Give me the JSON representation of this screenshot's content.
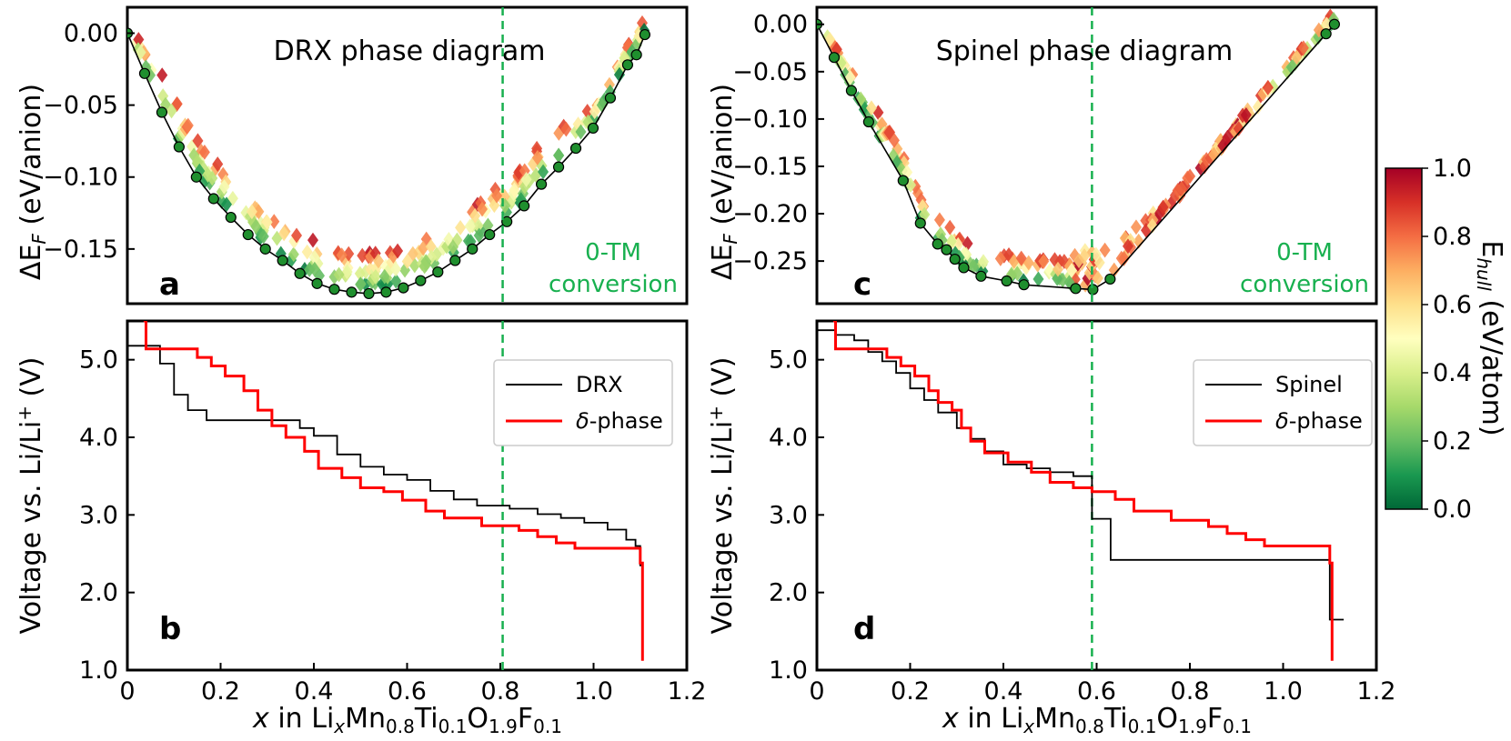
{
  "chart_data": [
    {
      "id": "a",
      "panel_label": "a",
      "type": "scatter",
      "title": "DRX phase diagram",
      "xlabel": "",
      "ylabel": "ΔE_F (eV/anion)",
      "xlim": [
        0,
        1.2
      ],
      "ylim": [
        -0.188,
        0.018
      ],
      "yticks": [
        0.0,
        -0.05,
        -0.1,
        -0.15
      ],
      "ytick_labels": [
        "0.00",
        "−0.05",
        "−0.10",
        "−0.15"
      ],
      "vline_x": 0.805,
      "annotation": [
        "0-TM",
        "conversion"
      ],
      "hull": {
        "x": [
          0,
          0.037,
          0.074,
          0.111,
          0.148,
          0.185,
          0.222,
          0.259,
          0.296,
          0.333,
          0.37,
          0.407,
          0.444,
          0.481,
          0.518,
          0.555,
          0.592,
          0.629,
          0.666,
          0.703,
          0.74,
          0.777,
          0.814,
          0.851,
          0.888,
          0.925,
          0.962,
          0.999,
          1.036,
          1.073,
          1.092,
          1.11
        ],
        "y": [
          0.0,
          -0.028,
          -0.055,
          -0.079,
          -0.1,
          -0.115,
          -0.128,
          -0.14,
          -0.15,
          -0.158,
          -0.167,
          -0.174,
          -0.178,
          -0.18,
          -0.181,
          -0.18,
          -0.177,
          -0.172,
          -0.166,
          -0.158,
          -0.15,
          -0.14,
          -0.131,
          -0.12,
          -0.105,
          -0.093,
          -0.08,
          -0.066,
          -0.045,
          -0.022,
          -0.015,
          -0.001
        ]
      },
      "scatter_top": {
        "x": [
          0.0,
          0.2,
          0.5,
          0.8,
          1.0,
          1.1
        ],
        "y": [
          0.0,
          -0.085,
          -0.155,
          -0.095,
          -0.055,
          -0.01
        ]
      },
      "scatter_spread": 0.025
    },
    {
      "id": "b",
      "panel_label": "b",
      "type": "line",
      "xlabel": "x in LixMn0.8Ti0.1O1.9F0.1",
      "ylabel": "Voltage vs. Li/Li⁺ (V)",
      "xlim": [
        0,
        1.2
      ],
      "ylim": [
        1.0,
        5.5
      ],
      "xticks": [
        0,
        0.2,
        0.4,
        0.6,
        0.8,
        1.0,
        1.2
      ],
      "xtick_labels": [
        "0",
        "0.2",
        "0.4",
        "0.6",
        "0.8",
        "1.0",
        "1.2"
      ],
      "yticks": [
        1.0,
        2.0,
        3.0,
        4.0,
        5.0
      ],
      "ytick_labels": [
        "1.0",
        "2.0",
        "3.0",
        "4.0",
        "5.0"
      ],
      "vline_x": 0.805,
      "legend": [
        "DRX",
        "δ-phase"
      ],
      "series": [
        {
          "name": "DRX",
          "color": "#000000",
          "steps": {
            "x": [
              0,
              0.05,
              0.07,
              0.1,
              0.13,
              0.17,
              0.2,
              0.27,
              0.33,
              0.37,
              0.4,
              0.45,
              0.5,
              0.55,
              0.6,
              0.65,
              0.7,
              0.75,
              0.82,
              0.88,
              0.93,
              0.98,
              1.03,
              1.07,
              1.09,
              1.1,
              1.105
            ],
            "y": [
              5.18,
              5.18,
              4.95,
              4.55,
              4.35,
              4.22,
              4.22,
              4.22,
              4.22,
              4.12,
              4.02,
              3.78,
              3.62,
              3.52,
              3.45,
              3.31,
              3.2,
              3.12,
              3.08,
              3.01,
              2.96,
              2.9,
              2.81,
              2.68,
              2.6,
              2.35,
              1.25
            ]
          }
        },
        {
          "name": "δ-phase",
          "color": "#ff0000",
          "steps": {
            "x": [
              0.035,
              0.04,
              0.12,
              0.15,
              0.18,
              0.21,
              0.25,
              0.28,
              0.31,
              0.34,
              0.38,
              0.41,
              0.46,
              0.5,
              0.55,
              0.59,
              0.64,
              0.68,
              0.76,
              0.84,
              0.88,
              0.92,
              0.96,
              1.1,
              1.105
            ],
            "y": [
              5.5,
              5.14,
              5.14,
              5.03,
              4.92,
              4.79,
              4.6,
              4.35,
              4.15,
              4.0,
              3.82,
              3.6,
              3.48,
              3.35,
              3.3,
              3.19,
              3.05,
              2.96,
              2.86,
              2.8,
              2.72,
              2.64,
              2.57,
              2.38,
              1.12
            ]
          }
        }
      ]
    },
    {
      "id": "c",
      "panel_label": "c",
      "type": "scatter",
      "title": "Spinel phase diagram",
      "xlabel": "",
      "ylabel": "ΔE_F (eV/anion)",
      "xlim": [
        0,
        1.2
      ],
      "ylim": [
        -0.295,
        0.018
      ],
      "yticks": [
        0.0,
        -0.05,
        -0.1,
        -0.15,
        -0.2,
        -0.25
      ],
      "ytick_labels": [
        "0.00",
        "−0.05",
        "−0.10",
        "−0.15",
        "−0.20",
        "−0.25"
      ],
      "vline_x": 0.59,
      "annotation": [
        "0-TM",
        "conversion"
      ],
      "hull": {
        "x": [
          0,
          0.037,
          0.074,
          0.111,
          0.185,
          0.222,
          0.259,
          0.278,
          0.296,
          0.315,
          0.352,
          0.407,
          0.444,
          0.555,
          0.592,
          0.629,
          1.092,
          1.11
        ],
        "y": [
          0.0,
          -0.035,
          -0.07,
          -0.103,
          -0.165,
          -0.21,
          -0.232,
          -0.238,
          -0.248,
          -0.257,
          -0.266,
          -0.271,
          -0.275,
          -0.279,
          -0.28,
          -0.269,
          -0.01,
          0.0
        ]
      },
      "scatter_top": {
        "x": [
          0.0,
          0.3,
          0.6,
          0.9,
          1.1
        ],
        "y": [
          0.0,
          -0.215,
          -0.245,
          -0.14,
          -0.02
        ]
      },
      "scatter_spread": 0.025
    },
    {
      "id": "d",
      "panel_label": "d",
      "type": "line",
      "xlabel": "x in LixMn0.8Ti0.1O1.9F0.1",
      "ylabel": "Voltage vs. Li/Li⁺ (V)",
      "xlim": [
        0,
        1.2
      ],
      "ylim": [
        1.0,
        5.5
      ],
      "xticks": [
        0,
        0.2,
        0.4,
        0.6,
        0.8,
        1.0,
        1.2
      ],
      "xtick_labels": [
        "0",
        "0.2",
        "0.4",
        "0.6",
        "0.8",
        "1.0",
        "1.2"
      ],
      "yticks": [
        1.0,
        2.0,
        3.0,
        4.0,
        5.0
      ],
      "ytick_labels": [
        "1.0",
        "2.0",
        "3.0",
        "4.0",
        "5.0"
      ],
      "vline_x": 0.59,
      "legend": [
        "Spinel",
        "δ-phase"
      ],
      "series": [
        {
          "name": "Spinel",
          "color": "#000000",
          "steps": {
            "x": [
              0,
              0.04,
              0.08,
              0.11,
              0.14,
              0.17,
              0.2,
              0.23,
              0.26,
              0.3,
              0.33,
              0.36,
              0.4,
              0.45,
              0.5,
              0.55,
              0.59,
              0.63,
              1.1,
              1.13
            ],
            "y": [
              5.38,
              5.32,
              5.25,
              5.1,
              4.98,
              4.83,
              4.63,
              4.48,
              4.32,
              4.12,
              3.98,
              3.82,
              3.65,
              3.6,
              3.55,
              3.5,
              2.95,
              2.42,
              1.65,
              1.65
            ]
          }
        },
        {
          "name": "δ-phase",
          "color": "#ff0000",
          "steps": {
            "x": [
              0.035,
              0.04,
              0.12,
              0.15,
              0.18,
              0.21,
              0.24,
              0.26,
              0.29,
              0.31,
              0.33,
              0.36,
              0.41,
              0.46,
              0.5,
              0.55,
              0.59,
              0.64,
              0.68,
              0.76,
              0.84,
              0.88,
              0.92,
              0.96,
              1.1,
              1.105
            ],
            "y": [
              5.5,
              5.14,
              5.14,
              5.03,
              4.92,
              4.79,
              4.6,
              4.45,
              4.35,
              4.12,
              3.95,
              3.8,
              3.68,
              3.55,
              3.42,
              3.35,
              3.3,
              3.2,
              3.05,
              2.93,
              2.85,
              2.76,
              2.68,
              2.6,
              2.38,
              1.12
            ]
          }
        }
      ]
    }
  ],
  "colorbar": {
    "label": "E_hull (eV/atom)",
    "range": [
      0.0,
      1.0
    ],
    "ticks": [
      0.0,
      0.2,
      0.4,
      0.6,
      0.8,
      1.0
    ],
    "tick_labels": [
      "0.0",
      "0.2",
      "0.4",
      "0.6",
      "0.8",
      "1.0"
    ],
    "colors": [
      "#006837",
      "#1a9850",
      "#66bd63",
      "#a6d96a",
      "#d9ef8b",
      "#ffffbf",
      "#fee08b",
      "#fdae61",
      "#f46d43",
      "#d73027",
      "#a50026"
    ]
  }
}
